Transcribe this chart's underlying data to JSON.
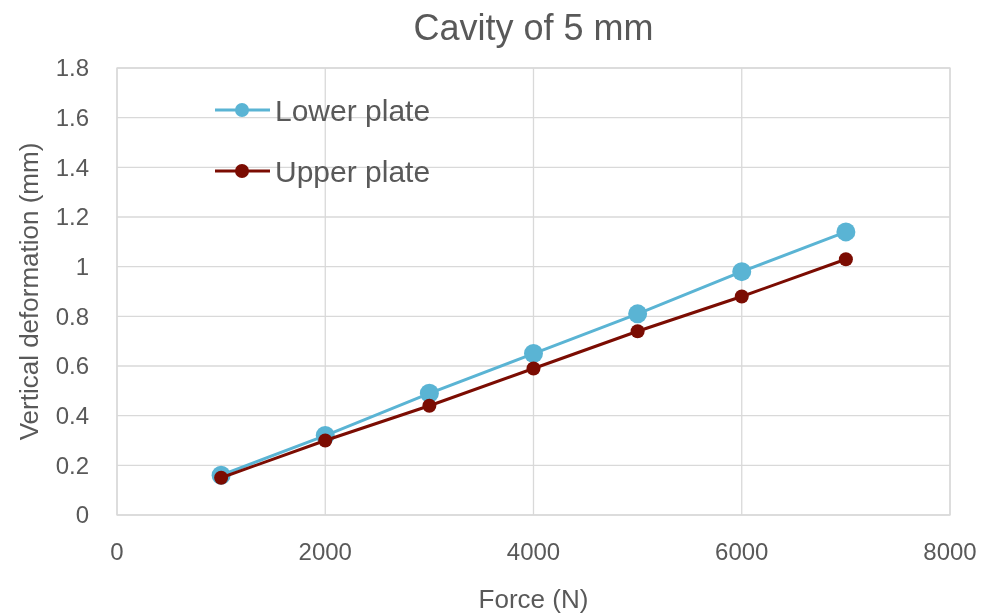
{
  "chart_data": {
    "type": "line",
    "title": "Cavity of 5 mm",
    "xlabel": "Force (N)",
    "ylabel": "Vertical deformation (mm)",
    "x": [
      1000,
      2000,
      3000,
      4000,
      5000,
      6000,
      7000
    ],
    "series": [
      {
        "name": "Lower plate",
        "color": "#5ab4d4",
        "values": [
          0.16,
          0.32,
          0.49,
          0.65,
          0.81,
          0.98,
          1.14
        ]
      },
      {
        "name": "Upper plate",
        "color": "#7b0c02",
        "values": [
          0.15,
          0.3,
          0.44,
          0.59,
          0.74,
          0.88,
          1.03
        ]
      }
    ],
    "xlim": [
      0,
      8000
    ],
    "xticks": [
      0,
      2000,
      4000,
      6000,
      8000
    ],
    "ylim": [
      0,
      1.8
    ],
    "yticks": [
      0,
      0.2,
      0.4,
      0.6,
      0.8,
      1,
      1.2,
      1.4,
      1.6,
      1.8
    ],
    "grid": true,
    "legend": "top left",
    "marker": "circle",
    "line_style": "solid"
  }
}
